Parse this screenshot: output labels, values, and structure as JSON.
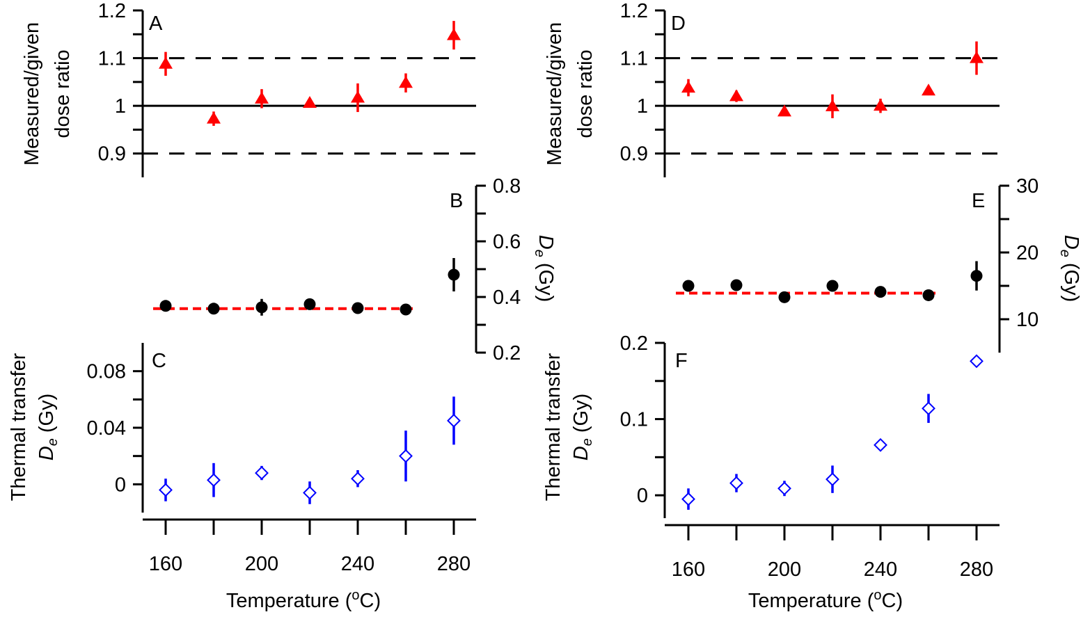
{
  "colors": {
    "ratio_marker": "#ff0000",
    "de_marker": "#000000",
    "mean_line": "#ff0000",
    "thermal_marker": "#0000ff",
    "axis": "#000000"
  },
  "chart_data": [
    {
      "type": "scatter",
      "panel": "A",
      "label": "A",
      "ylabel": [
        "Measured/given",
        "dose ratio"
      ],
      "ylim": [
        0.85,
        1.2
      ],
      "yticks": [
        0.9,
        1,
        1.1,
        1.2
      ],
      "ytick_labels": [
        "0.9",
        "1",
        "1.1",
        "1.2"
      ],
      "yaxis_side": "left",
      "reference_lines": [
        {
          "y": 1.0,
          "style": "solid"
        },
        {
          "y": 1.1,
          "style": "dashed"
        },
        {
          "y": 0.9,
          "style": "dashed"
        }
      ],
      "marker": "filled-triangle",
      "x": [
        160,
        180,
        200,
        220,
        240,
        260,
        280
      ],
      "y": [
        1.088,
        0.973,
        1.015,
        1.006,
        1.017,
        1.048,
        1.148
      ],
      "err": [
        0.025,
        0.015,
        0.02,
        0.008,
        0.03,
        0.02,
        0.03
      ]
    },
    {
      "type": "scatter",
      "panel": "B",
      "label": "B",
      "ylabel_main": "D",
      "ylabel_sub": "e",
      "ylabel_unit": " (Gy)",
      "ylim": [
        0.2,
        0.8
      ],
      "yticks": [
        0.2,
        0.4,
        0.6,
        0.8
      ],
      "ytick_labels": [
        "0.2",
        "0.4",
        "0.6",
        "0.8"
      ],
      "yaxis_side": "right",
      "marker": "filled-circle",
      "x": [
        160,
        180,
        200,
        220,
        240,
        260,
        280
      ],
      "y": [
        0.368,
        0.358,
        0.363,
        0.374,
        0.36,
        0.355,
        0.48
      ],
      "err": [
        0.01,
        0.008,
        0.03,
        0.008,
        0.01,
        0.008,
        0.06
      ],
      "mean_line": {
        "y": 0.358,
        "x_range": [
          160,
          260
        ],
        "style": "dashed"
      }
    },
    {
      "type": "scatter",
      "panel": "C",
      "label": "C",
      "ylabel": [
        "Thermal transfer"
      ],
      "ylabel_main": "D",
      "ylabel_sub": "e",
      "ylabel_unit": " (Gy)",
      "ylim": [
        -0.02,
        0.1
      ],
      "yticks": [
        0,
        0.04,
        0.08
      ],
      "ytick_labels": [
        "0",
        "0.04",
        "0.08"
      ],
      "yaxis_side": "left",
      "marker": "open-diamond",
      "x": [
        160,
        180,
        200,
        220,
        240,
        260,
        280
      ],
      "y": [
        -0.004,
        0.003,
        0.008,
        -0.006,
        0.004,
        0.02,
        0.045
      ],
      "err": [
        0.008,
        0.012,
        0.005,
        0.008,
        0.006,
        0.018,
        0.017
      ],
      "xlabel_main": "Temperature (",
      "xlabel_sup": "o",
      "xlabel_end": "C)",
      "xticks": [
        160,
        200,
        240,
        280
      ],
      "xtick_labels": [
        "160",
        "200",
        "240",
        "280"
      ]
    },
    {
      "type": "scatter",
      "panel": "D",
      "label": "D",
      "ylabel": [
        "Measured/given",
        "dose ratio"
      ],
      "ylim": [
        0.85,
        1.2
      ],
      "yticks": [
        0.9,
        1,
        1.1,
        1.2
      ],
      "ytick_labels": [
        "0.9",
        "1",
        "1.1",
        "1.2"
      ],
      "yaxis_side": "left",
      "reference_lines": [
        {
          "y": 1.0,
          "style": "solid"
        },
        {
          "y": 1.1,
          "style": "dashed"
        },
        {
          "y": 0.9,
          "style": "dashed"
        }
      ],
      "marker": "filled-triangle",
      "x": [
        160,
        180,
        200,
        220,
        240,
        260,
        280
      ],
      "y": [
        1.038,
        1.02,
        0.988,
        0.999,
        1.0,
        1.032,
        1.1
      ],
      "err": [
        0.018,
        0.012,
        0.008,
        0.025,
        0.015,
        0.01,
        0.035
      ]
    },
    {
      "type": "scatter",
      "panel": "E",
      "label": "E",
      "ylabel_main": "D",
      "ylabel_sub": "e",
      "ylabel_unit": " (Gy)",
      "ylim": [
        5,
        30
      ],
      "yticks": [
        10,
        20,
        30
      ],
      "ytick_labels": [
        "10",
        "20",
        "30"
      ],
      "yaxis_side": "right",
      "marker": "filled-circle",
      "x": [
        160,
        180,
        200,
        220,
        240,
        260,
        280
      ],
      "y": [
        15.0,
        15.1,
        13.3,
        15.0,
        14.1,
        13.6,
        16.5
      ],
      "err": [
        0.3,
        0.3,
        0.3,
        0.3,
        0.3,
        0.8,
        2.2
      ],
      "mean_line": {
        "y": 13.9,
        "x_range": [
          160,
          260
        ],
        "style": "dashed"
      }
    },
    {
      "type": "scatter",
      "panel": "F",
      "label": "F",
      "ylabel": [
        "Thermal transfer"
      ],
      "ylabel_main": "D",
      "ylabel_sub": "e",
      "ylabel_unit": " (Gy)",
      "ylim": [
        -0.03,
        0.2
      ],
      "yticks": [
        0,
        0.1,
        0.2
      ],
      "ytick_labels": [
        "0",
        "0.1",
        "0.2"
      ],
      "yaxis_side": "left",
      "marker": "open-diamond",
      "x": [
        160,
        180,
        200,
        220,
        240,
        260,
        280
      ],
      "y": [
        -0.005,
        0.016,
        0.009,
        0.021,
        0.066,
        0.114,
        0.176
      ],
      "err": [
        0.014,
        0.012,
        0.01,
        0.018,
        0.004,
        0.019,
        0.003
      ],
      "xlabel_main": "Temperature (",
      "xlabel_sup": "o",
      "xlabel_end": "C)",
      "xticks": [
        160,
        200,
        240,
        280
      ],
      "xtick_labels": [
        "160",
        "200",
        "240",
        "280"
      ]
    }
  ]
}
